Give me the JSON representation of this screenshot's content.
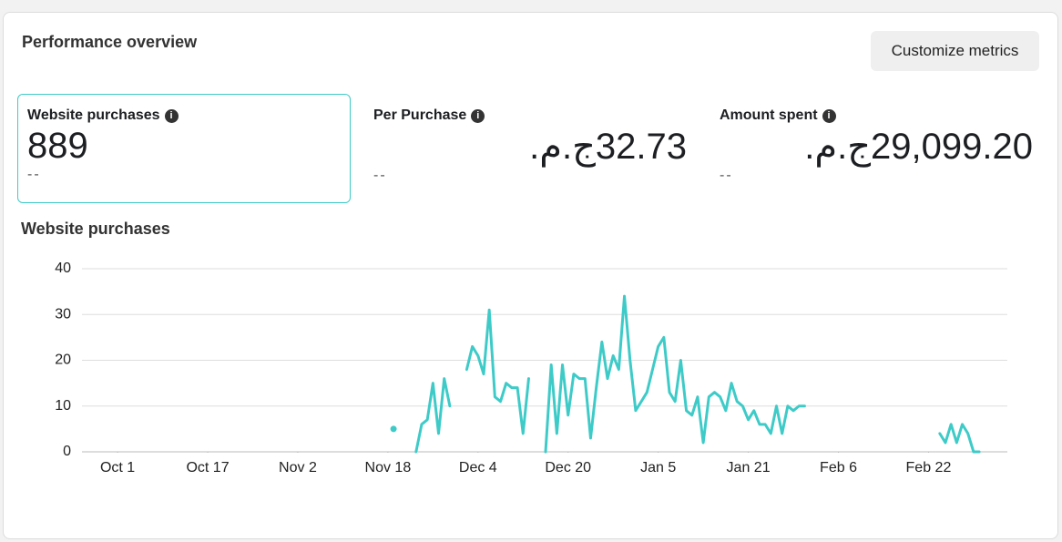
{
  "header": {
    "title": "Performance overview",
    "button": "Customize metrics"
  },
  "metrics": [
    {
      "label": "Website purchases",
      "value": "889",
      "comparison": "--",
      "selected": true
    },
    {
      "label": "Per Purchase",
      "value": "32.73ج.م.",
      "comparison": "--",
      "selected": false
    },
    {
      "label": "Amount spent",
      "value": "29,099.20ج.م.",
      "comparison": "--",
      "selected": false
    }
  ],
  "chart_data": {
    "type": "line",
    "title": "Website purchases",
    "color": "#3ecbc8",
    "grid": true,
    "xlim": [
      -6,
      158
    ],
    "ylim": [
      0,
      40
    ],
    "yticks": [
      0,
      10,
      20,
      30,
      40
    ],
    "xticks": [
      {
        "value": 0,
        "label": "Oct 1"
      },
      {
        "value": 16,
        "label": "Oct 17"
      },
      {
        "value": 32,
        "label": "Nov 2"
      },
      {
        "value": 48,
        "label": "Nov 18"
      },
      {
        "value": 64,
        "label": "Dec 4"
      },
      {
        "value": 80,
        "label": "Dec 20"
      },
      {
        "value": 96,
        "label": "Jan 5"
      },
      {
        "value": 112,
        "label": "Jan 21"
      },
      {
        "value": 128,
        "label": "Feb 6"
      },
      {
        "value": 144,
        "label": "Feb 22"
      }
    ],
    "x": [
      49,
      50,
      53,
      54,
      55,
      56,
      57,
      58,
      59,
      60,
      62,
      63,
      64,
      65,
      66,
      67,
      68,
      69,
      70,
      71,
      72,
      73,
      74,
      76,
      77,
      78,
      79,
      80,
      81,
      82,
      83,
      84,
      85,
      86,
      87,
      88,
      89,
      90,
      91,
      92,
      93,
      94,
      95,
      96,
      97,
      98,
      99,
      100,
      101,
      102,
      103,
      104,
      105,
      106,
      107,
      108,
      109,
      110,
      111,
      112,
      113,
      114,
      115,
      116,
      117,
      118,
      119,
      120,
      121,
      122,
      123,
      146,
      147,
      148,
      149,
      150,
      151,
      152,
      153
    ],
    "values": [
      5,
      null,
      0,
      6,
      7,
      15,
      4,
      16,
      10,
      null,
      18,
      23,
      21,
      17,
      31,
      12,
      11,
      15,
      14,
      14,
      4,
      16,
      null,
      0,
      19,
      4,
      19,
      8,
      17,
      16,
      16,
      3,
      14,
      24,
      16,
      21,
      18,
      34,
      20,
      9,
      11,
      13,
      18,
      23,
      25,
      13,
      11,
      20,
      9,
      8,
      12,
      2,
      12,
      13,
      12,
      9,
      15,
      11,
      10,
      7,
      9,
      6,
      6,
      4,
      10,
      4,
      10,
      9,
      10,
      10,
      null,
      4,
      2,
      6,
      2,
      6,
      4,
      0,
      0
    ]
  }
}
